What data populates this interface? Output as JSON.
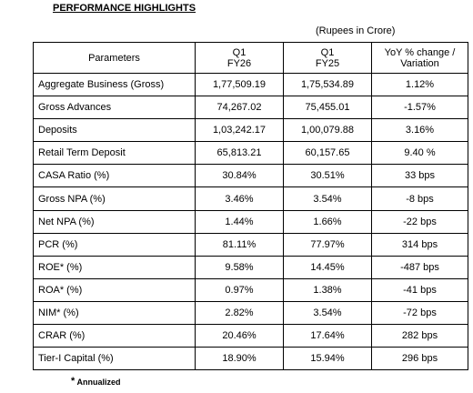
{
  "title": "PERFORMANCE HIGHLIGHTS",
  "unit_note": "(Rupees in Crore)",
  "table": {
    "headers": {
      "parameters": "Parameters",
      "q1fy26": [
        "Q1",
        "FY26"
      ],
      "q1fy25": [
        "Q1",
        "FY25"
      ],
      "yoy": [
        "YoY % change /",
        "Variation"
      ]
    },
    "rows": [
      {
        "param": "Aggregate Business (Gross)",
        "q1fy26": "1,77,509.19",
        "q1fy25": "1,75,534.89",
        "yoy": "1.12%"
      },
      {
        "param": "Gross Advances",
        "q1fy26": "74,267.02",
        "q1fy25": "75,455.01",
        "yoy": "-1.57%"
      },
      {
        "param": "Deposits",
        "q1fy26": "1,03,242.17",
        "q1fy25": "1,00,079.88",
        "yoy": "3.16%"
      },
      {
        "param": "Retail Term Deposit",
        "q1fy26": "65,813.21",
        "q1fy25": "60,157.65",
        "yoy": "9.40 %"
      },
      {
        "param": "CASA Ratio (%)",
        "q1fy26": "30.84%",
        "q1fy25": "30.51%",
        "yoy": "33 bps"
      },
      {
        "param": "Gross NPA (%)",
        "q1fy26": "3.46%",
        "q1fy25": "3.54%",
        "yoy": "-8 bps"
      },
      {
        "param": "Net NPA (%)",
        "q1fy26": "1.44%",
        "q1fy25": "1.66%",
        "yoy": "-22 bps"
      },
      {
        "param": "PCR (%)",
        "q1fy26": "81.11%",
        "q1fy25": "77.97%",
        "yoy": "314 bps"
      },
      {
        "param": "ROE* (%)",
        "q1fy26": "9.58%",
        "q1fy25": "14.45%",
        "yoy": "-487 bps"
      },
      {
        "param": "ROA* (%)",
        "q1fy26": "0.97%",
        "q1fy25": "1.38%",
        "yoy": "-41 bps"
      },
      {
        "param": "NIM* (%)",
        "q1fy26": "2.82%",
        "q1fy25": "3.54%",
        "yoy": "-72 bps"
      },
      {
        "param": "CRAR (%)",
        "q1fy26": "20.46%",
        "q1fy25": "17.64%",
        "yoy": "282 bps"
      },
      {
        "param": "Tier-I Capital (%)",
        "q1fy26": "18.90%",
        "q1fy25": "15.94%",
        "yoy": "296 bps"
      }
    ]
  },
  "footnote": {
    "star": "*",
    "text": "Annualized"
  }
}
